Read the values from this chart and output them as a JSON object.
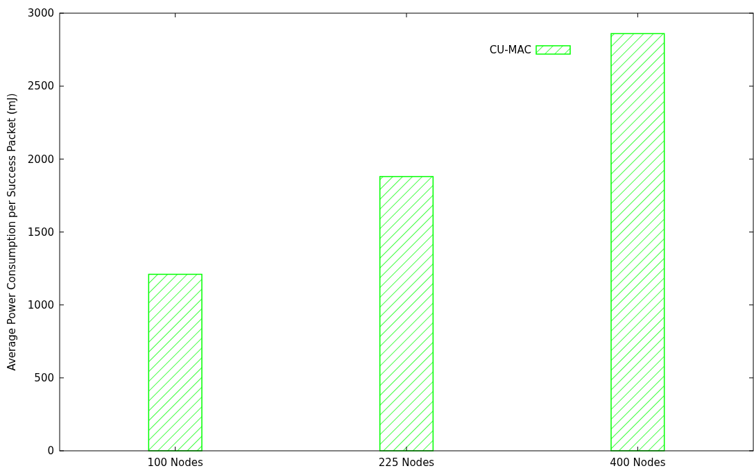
{
  "chart_data": {
    "type": "bar",
    "ylabel": "Average Power Consumption per Success Packet (mJ)",
    "categories": [
      "100 Nodes",
      "225 Nodes",
      "400 Nodes"
    ],
    "series": [
      {
        "name": "CU-MAC",
        "color": "#00ff00",
        "values": [
          1210,
          1880,
          2860
        ]
      }
    ],
    "ylim": [
      0,
      3000
    ],
    "yticks": [
      0,
      500,
      1000,
      1500,
      2000,
      2500,
      3000
    ],
    "grid": false,
    "legend": "top right"
  }
}
